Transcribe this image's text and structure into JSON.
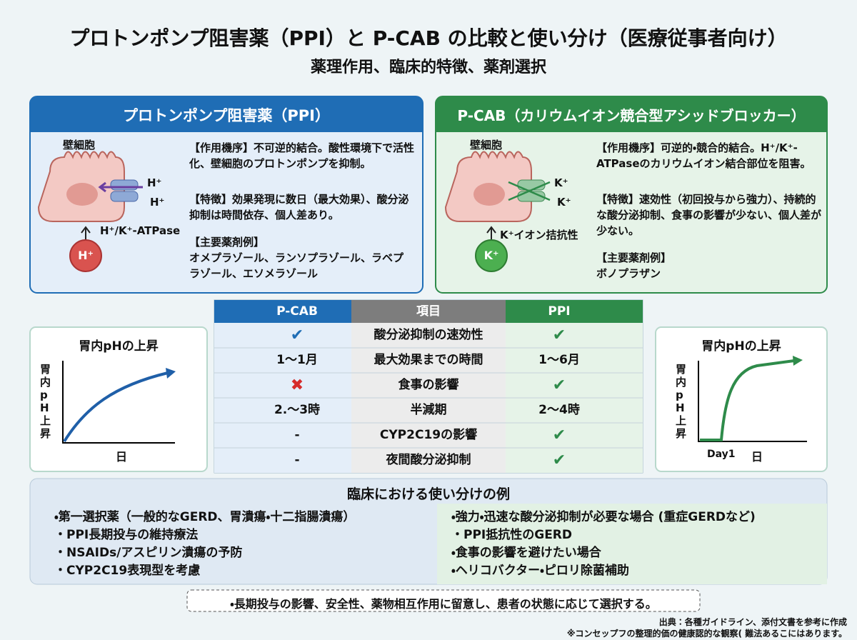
{
  "header": {
    "title": "プロトンポンプ阻害薬（PPI）と P-CAB の比較と使い分け（医療従事者向け）",
    "subtitle": "薬理作用、臨床的特徴、薬剤選択"
  },
  "ppi_panel": {
    "title": "プロトンポンプ阻害薬（PPI）",
    "cell_label": "壁細胞",
    "ion_labels": [
      "H⁺",
      "H⁺"
    ],
    "transporter": "H⁺/K⁺-ATPase",
    "ion": "H⁺",
    "mechanism": "【作用機序】不可逆的結合。酸性環境下で活性化、壁細胞のプロトンポンプを抑制。",
    "features": "【特徴】効果発現に数日（最大効果）、酸分泌抑制は時間依存、個人差あり。",
    "drugs_heading": "【主要薬剤例】",
    "drugs": "オメプラゾール、ランソプラゾール、ラベプラゾール、エソメラゾール"
  },
  "pcab_panel": {
    "title": "P-CAB（カリウムイオン競合型アシッドブロッカー）",
    "cell_label": "壁細胞",
    "ion_labels": [
      "K⁺",
      "K⁺"
    ],
    "transporter": "K⁺イオン拮抗性",
    "ion": "K⁺",
    "mechanism": "【作用機序】可逆的・競合的結合。H⁺/K⁺-ATPaseのカリウムイオン結合部位を阻害。",
    "features": "【特徴】速効性（初回投与から強力）、持続的な酸分泌抑制、食事の影響が少ない、個人差が少ない。",
    "drugs_heading": "【主要薬剤例】",
    "drugs": "ボノプラザン"
  },
  "left_chart": {
    "title": "胃内pHの上昇",
    "y_label": "胃内pH上昇",
    "x_label": "日"
  },
  "right_chart": {
    "title": "胃内pHの上昇",
    "y_label": "胃内pH上昇",
    "x_label": "日",
    "marker": "Day1"
  },
  "table": {
    "headers": [
      "P-CAB",
      "項目",
      "PPI"
    ],
    "rows": [
      [
        "✔",
        "酸分泌抑制の速効性",
        "✔"
      ],
      [
        "1〜1月",
        "最大効果までの時間",
        "1〜6月"
      ],
      [
        "✖",
        "食事の影響",
        "✔"
      ],
      [
        "2.〜3時",
        "半減期",
        "2〜4時"
      ],
      [
        "-",
        "CYP2C19の影響",
        "✔"
      ],
      [
        "-",
        "夜間酸分泌抑制",
        "✔"
      ]
    ]
  },
  "clinical": {
    "heading": "臨床における使い分けの例",
    "left": [
      "・第一選択薬（一般的なGERD、胃潰瘍・十二指腸潰瘍）",
      "・PPI長期投与の維持療法",
      "・NSAIDs/アスピリン潰瘍の予防",
      "・CYP2C19表現型を考慮"
    ],
    "right": [
      "・強力・迅速な酸分泌抑制が必要な場合 (重症GERDなど)",
      "・PPI抵抗性のGERD",
      "・食事の影響を避けたい場合",
      "・ヘリコバクター・ピロリ除菌補助"
    ]
  },
  "note": "・長期投与の影響、安全性、薬物相互作用に留意し、患者の状態に応じて選択する。",
  "footer": {
    "source": "出典：各種ガイドライン、添付文書を参考に作成",
    "disclaimer": "※コンセップフの整理的価の健康認的な観察( 難法あるこにはあります。"
  }
}
